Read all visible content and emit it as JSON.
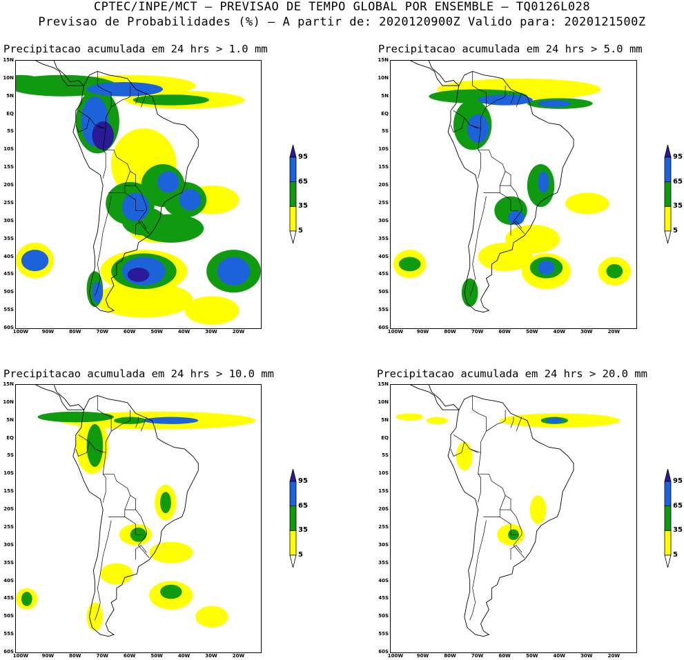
{
  "header": {
    "line1": "CPTEC/INPE/MCT – PREVISAO DE TEMPO GLOBAL POR ENSEMBLE – TQ0126L028",
    "line2": "Previsao de Probabilidades (%) –  A partir de: 2020120900Z  Valido para: 2020121500Z"
  },
  "colors": {
    "p5": "#ffff00",
    "p35": "#109a10",
    "p65": "#1c62d8",
    "p95": "#2a1a98",
    "coast": "#000000"
  },
  "lat_labels": [
    "15N",
    "10N",
    "5N",
    "EQ",
    "5S",
    "10S",
    "15S",
    "20S",
    "25S",
    "30S",
    "35S",
    "40S",
    "45S",
    "50S",
    "55S",
    "60S"
  ],
  "lon_labels": [
    "100W",
    "90W",
    "80W",
    "70W",
    "60W",
    "50W",
    "40W",
    "30W",
    "20W"
  ],
  "colorbar": {
    "levels": [
      "95",
      "65",
      "35",
      "5"
    ]
  },
  "panels": [
    {
      "id": "p1",
      "title": "Precipitacao acumulada em 24 hrs > 1.0 mm"
    },
    {
      "id": "p2",
      "title": "Precipitacao acumulada em 24 hrs > 5.0 mm"
    },
    {
      "id": "p3",
      "title": "Precipitacao acumulada em 24 hrs > 10.0 mm"
    },
    {
      "id": "p4",
      "title": "Precipitacao acumulada em 24 hrs > 20.0 mm"
    }
  ]
}
